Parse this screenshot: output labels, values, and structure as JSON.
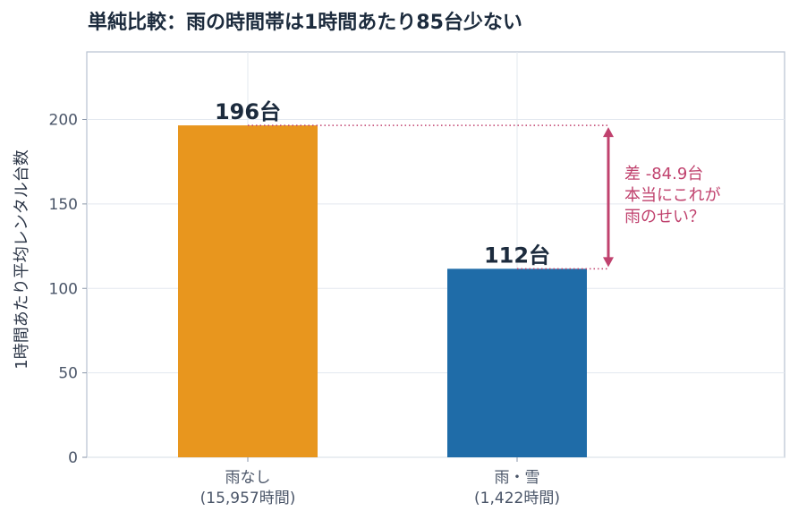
{
  "chart_data": {
    "type": "bar",
    "title": "単純比較：雨の時間帯は1時間あたり85台少ない",
    "ylabel": "1時間あたり平均レンタル台数",
    "xlabel": "",
    "ylim": [
      0,
      240
    ],
    "yticks": [
      0,
      50,
      100,
      150,
      200
    ],
    "grid": true,
    "categories": [
      {
        "line1": "雨なし",
        "line2": "(15,957時間)"
      },
      {
        "line1": "雨・雪",
        "line2": "(1,422時間)"
      }
    ],
    "values": [
      196.5,
      111.6
    ],
    "data_labels": [
      "196台",
      "112台"
    ],
    "colors": [
      "#e8961e",
      "#1f6ca8"
    ],
    "annotation": {
      "lines": [
        "差 -84.9台",
        "本当にこれが",
        "雨のせい？"
      ],
      "color": "#c0426e"
    }
  }
}
